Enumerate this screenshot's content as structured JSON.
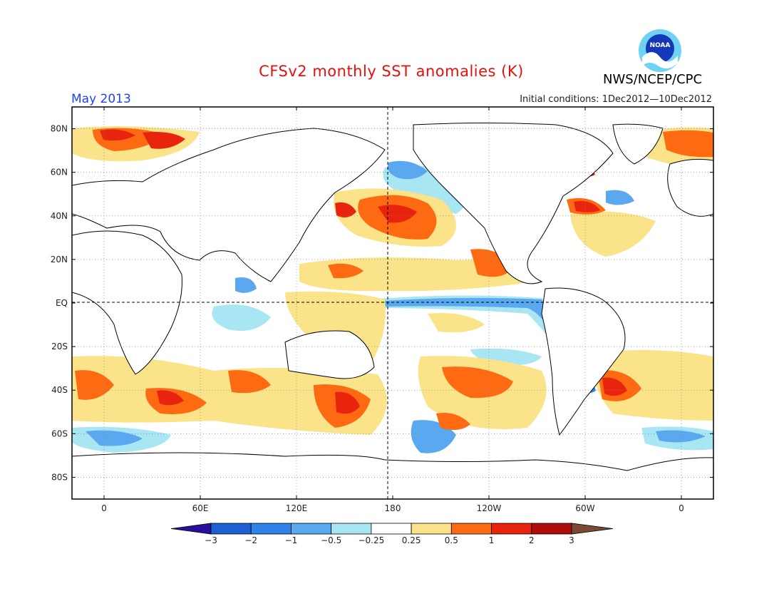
{
  "title": "CFSv2 monthly SST anomalies (K)",
  "month": "May 2013",
  "initial_conditions": "Initial conditions: 1Dec2012—10Dec2012",
  "organization": "NWS/NCEP/CPC",
  "logo_text": "NOAA",
  "lat_labels": [
    "80N",
    "60N",
    "40N",
    "20N",
    "EQ",
    "20S",
    "40S",
    "60S",
    "80S"
  ],
  "lat_values": [
    80,
    60,
    40,
    20,
    0,
    -20,
    -40,
    -60,
    -80
  ],
  "lon_labels": [
    "0",
    "60E",
    "120E",
    "180",
    "120W",
    "60W",
    "0"
  ],
  "lon_values": [
    0,
    60,
    120,
    180,
    240,
    300,
    360
  ],
  "colorbar": {
    "labels": [
      "−3",
      "−2",
      "−1",
      "−0.5",
      "−0.25",
      "0.25",
      "0.5",
      "1",
      "2",
      "3"
    ],
    "colors": [
      "#2a0f9a",
      "#1e5fd6",
      "#2f82e8",
      "#5aa8f0",
      "#a8e6f4",
      "#ffffff",
      "#fbe38a",
      "#fd6a12",
      "#e8240e",
      "#b00c0c",
      "#7a4a34"
    ]
  },
  "colors": {
    "warm_light": "#fbe38a",
    "warm": "#fd6a12",
    "warm_strong": "#e8240e",
    "warm_extreme": "#b00c0c",
    "cool_light": "#a8e6f4",
    "cool": "#5aa8f0",
    "cool_strong": "#2f82e8"
  }
}
